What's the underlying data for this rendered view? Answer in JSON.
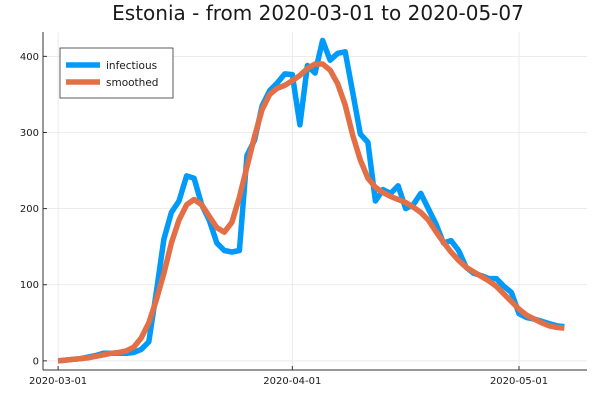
{
  "chart_data": {
    "type": "line",
    "title": "Estonia - from 2020-03-01 to 2020-05-07",
    "xlabel": "",
    "ylabel": "",
    "x_start": "2020-03-01",
    "x_end": "2020-05-07",
    "xlim": [
      "2020-02-28",
      "2020-05-10"
    ],
    "ylim": [
      -12,
      432
    ],
    "x_ticks": [
      "2020-03-01",
      "2020-04-01",
      "2020-05-01"
    ],
    "y_ticks": [
      0,
      100,
      200,
      300,
      400
    ],
    "grid": true,
    "legend_position": "top-left",
    "series": [
      {
        "name": "infectious",
        "color": "#009AF9",
        "values": [
          0,
          1,
          2,
          3,
          5,
          7,
          10,
          10,
          10,
          10,
          11,
          15,
          25,
          90,
          160,
          195,
          210,
          243,
          240,
          205,
          185,
          155,
          145,
          143,
          145,
          270,
          290,
          335,
          355,
          365,
          377,
          376,
          310,
          388,
          378,
          421,
          395,
          404,
          406,
          352,
          298,
          287,
          210,
          225,
          220,
          230,
          200,
          205,
          220,
          200,
          180,
          155,
          158,
          145,
          123,
          115,
          112,
          108,
          108,
          98,
          90,
          62,
          57,
          55,
          52,
          49,
          46,
          45
        ]
      },
      {
        "name": "smoothed",
        "color": "#E26F46",
        "values": [
          0,
          1,
          2,
          3,
          4,
          6,
          8,
          10,
          11,
          13,
          18,
          30,
          50,
          80,
          115,
          155,
          185,
          205,
          212,
          205,
          190,
          175,
          169,
          182,
          215,
          255,
          295,
          330,
          350,
          358,
          362,
          368,
          375,
          384,
          390,
          390,
          382,
          364,
          336,
          296,
          264,
          240,
          228,
          221,
          216,
          212,
          208,
          202,
          195,
          185,
          170,
          156,
          143,
          132,
          123,
          117,
          111,
          105,
          98,
          88,
          78,
          68,
          60,
          55,
          50,
          46,
          44,
          43
        ]
      }
    ]
  }
}
